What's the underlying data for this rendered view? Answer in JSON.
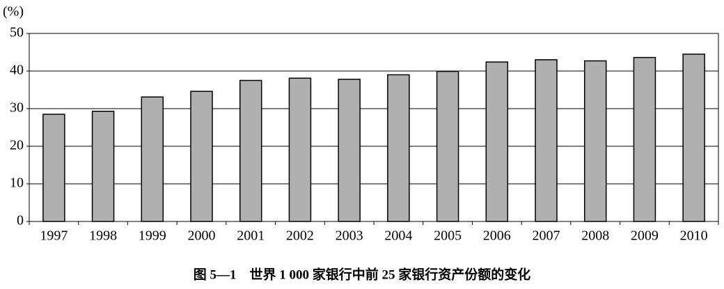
{
  "chart_data": {
    "type": "bar",
    "title": "图 5—1　世界 1 000 家银行中前 25 家银行资产份额的变化",
    "y_label": "(%)",
    "categories": [
      "1997",
      "1998",
      "1999",
      "2000",
      "2001",
      "2002",
      "2003",
      "2004",
      "2005",
      "2006",
      "2007",
      "2008",
      "2009",
      "2010"
    ],
    "values": [
      28.5,
      29.3,
      33.1,
      34.6,
      37.5,
      38.1,
      37.8,
      39.0,
      39.9,
      42.4,
      43.0,
      42.7,
      43.6,
      44.5
    ],
    "color": "#b0b0b0",
    "ylim": [
      0,
      50
    ],
    "yticks": [
      0,
      10,
      20,
      30,
      40,
      50
    ],
    "grid": true
  }
}
